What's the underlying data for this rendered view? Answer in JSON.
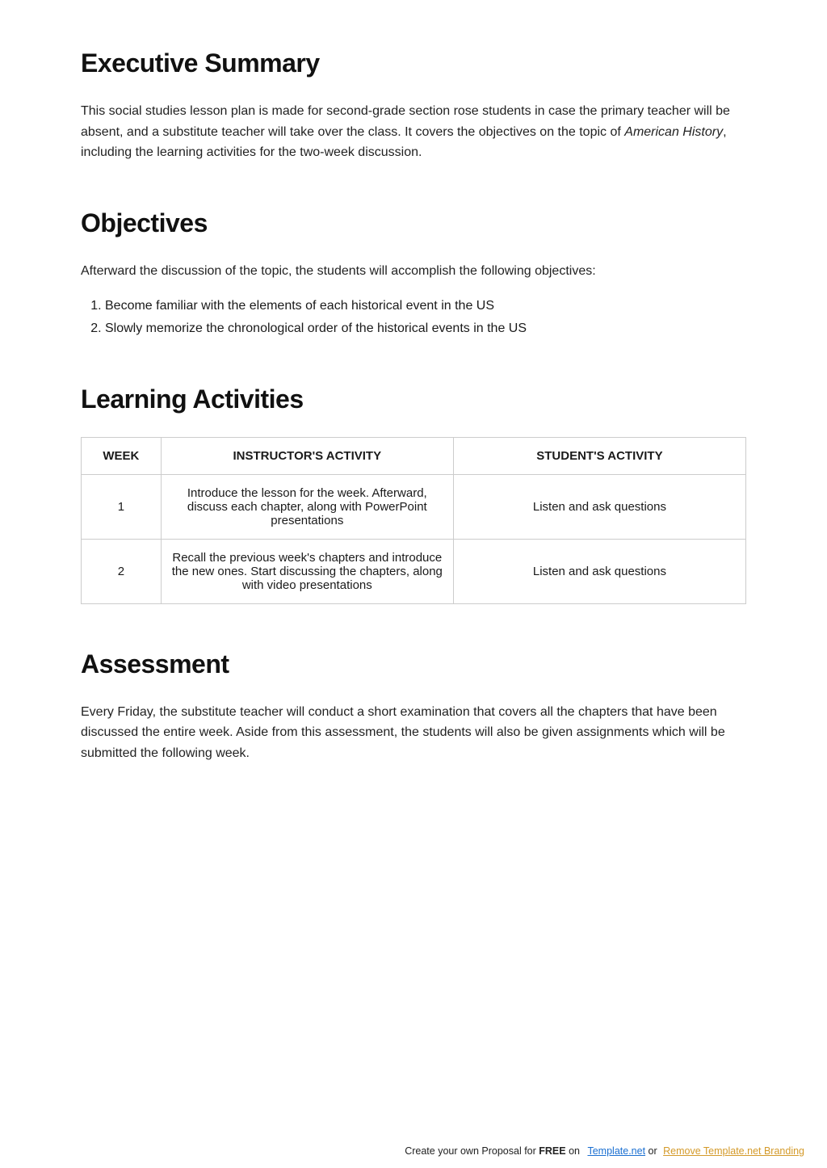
{
  "sections": {
    "execSummary": {
      "heading": "Executive Summary",
      "text_pre_italic": "This social studies lesson plan is made for second-grade section rose students in case the primary teacher will be absent, and a substitute teacher will take over the class. It covers the objectives on the topic of ",
      "italic_run": "American History",
      "text_post_italic": ", including the learning activities for the two-week discussion."
    },
    "objectives": {
      "heading": "Objectives",
      "intro": "Afterward the discussion of the topic, the students will accomplish the following objectives:",
      "items": [
        "Become familiar with the elements of each historical event in the US",
        "Slowly memorize the chronological order of the historical events in the US"
      ]
    },
    "learningActivities": {
      "heading": "Learning Activities",
      "columns": {
        "week": "WEEK",
        "instructor": "INSTRUCTOR'S ACTIVITY",
        "student": "STUDENT'S ACTIVITY"
      },
      "rows": [
        {
          "week": "1",
          "instructor": "Introduce the lesson for the week. Afterward, discuss each chapter, along with PowerPoint presentations",
          "student": "Listen and ask questions"
        },
        {
          "week": "2",
          "instructor": "Recall the previous week's chapters and introduce the new ones. Start discussing the chapters, along with video presentations",
          "student": "Listen and ask questions"
        }
      ]
    },
    "assessment": {
      "heading": "Assessment",
      "text": "Every Friday, the substitute teacher will conduct a short examination that covers all the chapters that have been discussed the entire week. Aside from this assessment, the students will also be given assignments which will be submitted the following week."
    }
  },
  "footer": {
    "lead": "Create your own Proposal for ",
    "free": "FREE",
    "on": " on",
    "templateLink": "Template.net",
    "or": " or ",
    "removeLink": "Remove Template.net Branding"
  }
}
